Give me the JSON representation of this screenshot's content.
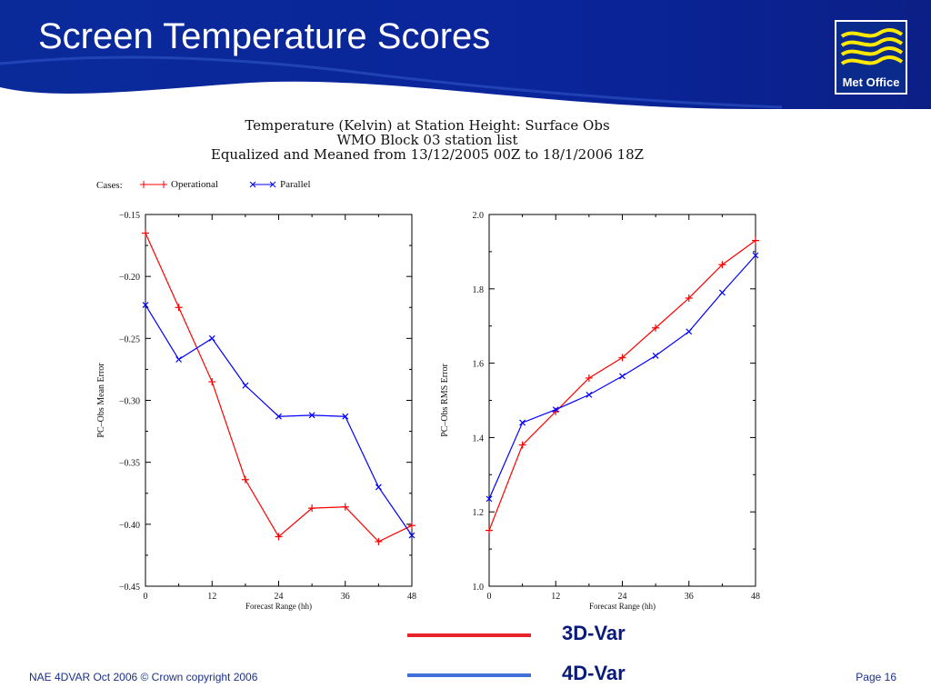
{
  "slide": {
    "title": "Screen Temperature Scores",
    "logo_text": "Met Office",
    "footer_left": "NAE 4DVAR Oct 2006 © Crown copyright 2006",
    "footer_right": "Page 16"
  },
  "figure": {
    "header_lines": [
      "Temperature (Kelvin) at Station Height:  Surface Obs",
      "WMO Block 03 station list",
      "Equalized and Meaned from 13/12/2005 00Z to 18/1/2006 18Z"
    ],
    "cases_label": "Cases:",
    "cases": [
      {
        "name": "Operational",
        "color": "#ff0000",
        "marker": "+"
      },
      {
        "name": "Parallel",
        "color": "#0000ff",
        "marker": "x"
      }
    ]
  },
  "legend": [
    {
      "label": "3D-Var",
      "color": "#e8242b"
    },
    {
      "label": "4D-Var",
      "color": "#3f6fd8"
    }
  ],
  "chart_data": [
    {
      "type": "line",
      "xlabel": "Forecast Range (hh)",
      "ylabel": "PC–Obs Mean Error",
      "x": [
        0,
        6,
        12,
        18,
        24,
        30,
        36,
        42,
        48
      ],
      "xticks": [
        0,
        12,
        24,
        36,
        48
      ],
      "xlim": [
        0,
        48
      ],
      "yticks": [
        -0.15,
        -0.2,
        -0.25,
        -0.3,
        -0.35,
        -0.4,
        -0.45
      ],
      "ytick_labels": [
        "−0.15",
        "−0.20",
        "−0.25",
        "−0.30",
        "−0.35",
        "−0.40",
        "−0.45"
      ],
      "ylim": [
        -0.45,
        -0.15
      ],
      "series": [
        {
          "name": "Operational",
          "color": "#ff0000",
          "marker": "+",
          "values": [
            -0.165,
            -0.225,
            -0.285,
            -0.364,
            -0.41,
            -0.387,
            -0.386,
            -0.414,
            -0.401
          ]
        },
        {
          "name": "Parallel",
          "color": "#0000ff",
          "marker": "x",
          "values": [
            -0.223,
            -0.267,
            -0.25,
            -0.288,
            -0.313,
            -0.312,
            -0.313,
            -0.37,
            -0.409
          ]
        }
      ]
    },
    {
      "type": "line",
      "xlabel": "Forecast Range (hh)",
      "ylabel": "PC–Obs RMS Error",
      "x": [
        0,
        6,
        12,
        18,
        24,
        30,
        36,
        42,
        48
      ],
      "xticks": [
        0,
        12,
        24,
        36,
        48
      ],
      "xlim": [
        0,
        48
      ],
      "yticks": [
        1.0,
        1.2,
        1.4,
        1.6,
        1.8,
        2.0
      ],
      "ytick_labels": [
        "1.0",
        "1.2",
        "1.4",
        "1.6",
        "1.8",
        "2.0"
      ],
      "ylim": [
        1.0,
        2.0
      ],
      "series": [
        {
          "name": "Operational",
          "color": "#ff0000",
          "marker": "+",
          "values": [
            1.15,
            1.38,
            1.47,
            1.56,
            1.615,
            1.695,
            1.775,
            1.865,
            1.93
          ]
        },
        {
          "name": "Parallel",
          "color": "#0000ff",
          "marker": "x",
          "values": [
            1.235,
            1.44,
            1.475,
            1.515,
            1.565,
            1.62,
            1.685,
            1.79,
            1.89
          ]
        }
      ]
    }
  ]
}
